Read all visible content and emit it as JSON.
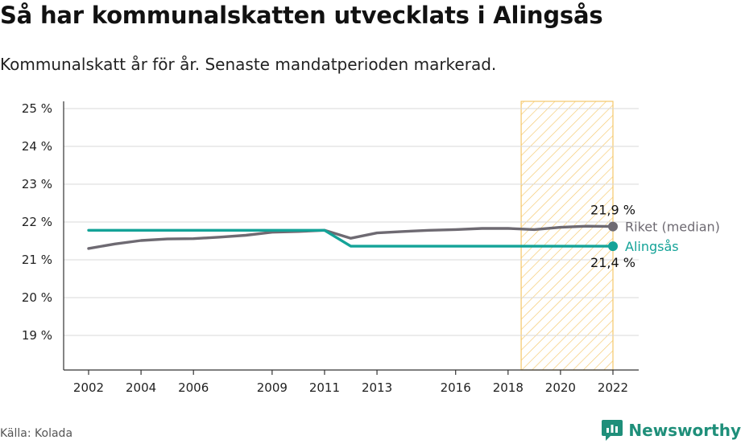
{
  "title": "Så har kommunalskatten utvecklats i Alingsås",
  "subtitle": "Kommunalskatt år för år. Senaste mandatperioden markerad.",
  "source": "Källa: Kolada",
  "brand": "Newsworthy",
  "colors": {
    "riket": "#6e6a72",
    "alingsas": "#14a398",
    "highlight": "#f5c76a",
    "brand": "#1f8f7a"
  },
  "icons": {
    "brand": "chart-speech-bubble-icon"
  },
  "chart_data": {
    "type": "line",
    "title": "Så har kommunalskatten utvecklats i Alingsås",
    "xlim": [
      2001,
      2023
    ],
    "ylim": [
      18.1,
      25.2
    ],
    "x_ticks": [
      2002,
      2004,
      2006,
      2009,
      2011,
      2013,
      2016,
      2018,
      2020,
      2022
    ],
    "y_ticks": [
      19,
      20,
      21,
      22,
      23,
      24,
      25
    ],
    "y_tick_labels": [
      "19 %",
      "20 %",
      "21 %",
      "22 %",
      "23 %",
      "24 %",
      "25 %"
    ],
    "highlight": {
      "from": 2018.5,
      "to": 2022,
      "label": "Senaste mandatperioden"
    },
    "grid": true,
    "series": [
      {
        "name": "Riket (median)",
        "end_value_label": "21,9 %",
        "x": [
          2002,
          2003,
          2004,
          2005,
          2006,
          2007,
          2008,
          2009,
          2010,
          2011,
          2012,
          2013,
          2014,
          2015,
          2016,
          2017,
          2018,
          2019,
          2020,
          2021,
          2022
        ],
        "values": [
          21.3,
          21.42,
          21.51,
          21.55,
          21.56,
          21.6,
          21.65,
          21.73,
          21.75,
          21.78,
          21.57,
          21.71,
          21.75,
          21.78,
          21.8,
          21.83,
          21.83,
          21.8,
          21.86,
          21.89,
          21.88
        ]
      },
      {
        "name": "Alingsås",
        "end_value_label": "21,4 %",
        "x": [
          2002,
          2003,
          2004,
          2005,
          2006,
          2007,
          2008,
          2009,
          2010,
          2011,
          2012,
          2013,
          2014,
          2015,
          2016,
          2017,
          2018,
          2019,
          2020,
          2021,
          2022
        ],
        "values": [
          21.78,
          21.78,
          21.78,
          21.78,
          21.78,
          21.78,
          21.78,
          21.78,
          21.78,
          21.78,
          21.36,
          21.36,
          21.36,
          21.36,
          21.36,
          21.36,
          21.36,
          21.36,
          21.36,
          21.36,
          21.36
        ]
      }
    ]
  }
}
